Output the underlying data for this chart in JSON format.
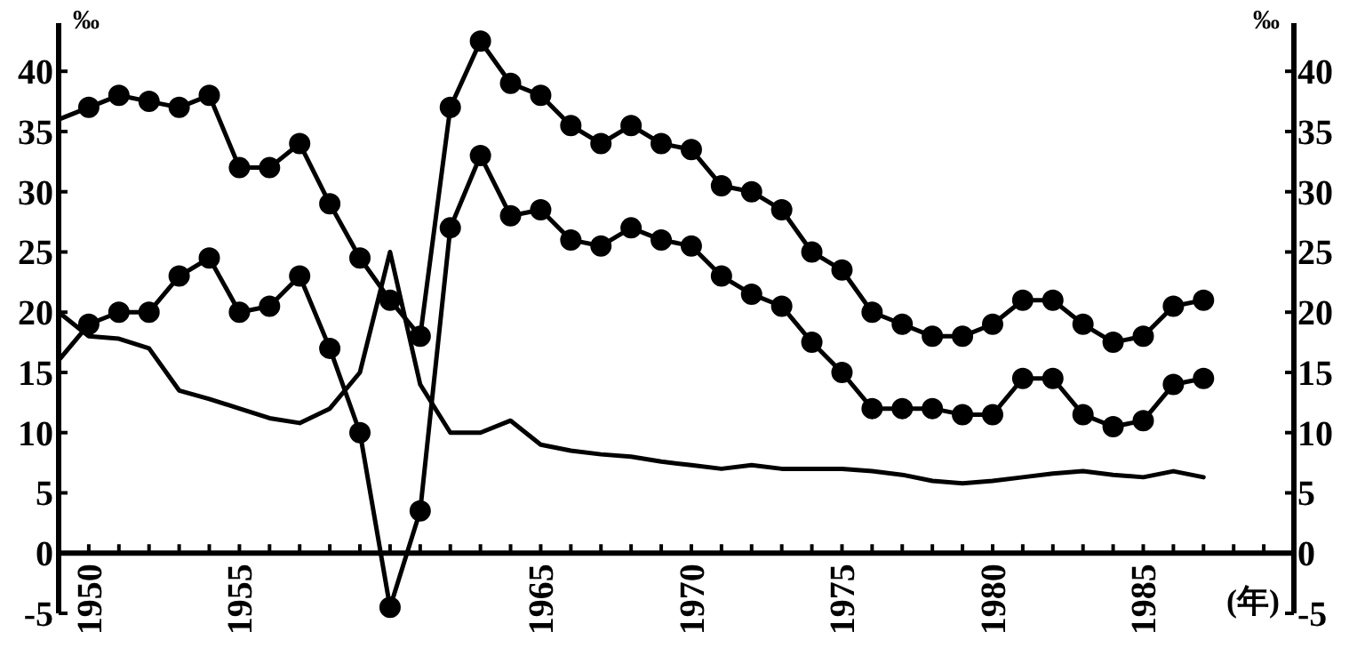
{
  "chart_data": {
    "type": "line",
    "xlabel": "(年)",
    "ylabel": "‰",
    "y2label": "‰",
    "x": [
      1949,
      1950,
      1951,
      1952,
      1953,
      1954,
      1955,
      1956,
      1957,
      1958,
      1959,
      1960,
      1961,
      1962,
      1963,
      1964,
      1965,
      1966,
      1967,
      1968,
      1969,
      1970,
      1971,
      1972,
      1973,
      1974,
      1975,
      1976,
      1977,
      1978,
      1979,
      1980,
      1981,
      1982,
      1983,
      1984,
      1985,
      1986,
      1987
    ],
    "xlim": [
      1949,
      1990
    ],
    "xticks": [
      {
        "value": 1949,
        "label": null
      },
      1950,
      {
        "value": 1951,
        "label": null
      },
      {
        "value": 1952,
        "label": null
      },
      {
        "value": 1953,
        "label": null
      },
      {
        "value": 1954,
        "label": null
      },
      1955,
      {
        "value": 1956,
        "label": null
      },
      {
        "value": 1957,
        "label": null
      },
      {
        "value": 1958,
        "label": null
      },
      {
        "value": 1959,
        "label": null
      },
      {
        "value": 1960,
        "label": null
      },
      {
        "value": 1961,
        "label": null
      },
      {
        "value": 1962,
        "label": null
      },
      {
        "value": 1963,
        "label": null
      },
      {
        "value": 1964,
        "label": null
      },
      1965,
      {
        "value": 1966,
        "label": null
      },
      {
        "value": 1967,
        "label": null
      },
      {
        "value": 1968,
        "label": null
      },
      {
        "value": 1969,
        "label": null
      },
      1970,
      {
        "value": 1971,
        "label": null
      },
      {
        "value": 1972,
        "label": null
      },
      {
        "value": 1973,
        "label": null
      },
      {
        "value": 1974,
        "label": null
      },
      1975,
      {
        "value": 1976,
        "label": null
      },
      {
        "value": 1977,
        "label": null
      },
      {
        "value": 1978,
        "label": null
      },
      {
        "value": 1979,
        "label": null
      },
      1980,
      {
        "value": 1981,
        "label": null
      },
      {
        "value": 1982,
        "label": null
      },
      {
        "value": 1983,
        "label": null
      },
      {
        "value": 1984,
        "label": null
      },
      1985,
      {
        "value": 1986,
        "label": null
      },
      {
        "value": 1987,
        "label": null
      },
      {
        "value": 1988,
        "label": null
      },
      {
        "value": 1989,
        "label": null
      }
    ],
    "ylim": [
      -5,
      44
    ],
    "yticks": [
      -5,
      0,
      5,
      10,
      15,
      20,
      25,
      30,
      35,
      40
    ],
    "y2lim": [
      -5,
      44
    ],
    "y2ticks": [
      -5,
      0,
      5,
      10,
      15,
      20,
      25,
      30,
      35,
      40
    ],
    "grid": false,
    "line_style": "solid",
    "series": [
      {
        "color": "#000000",
        "marker": "circle",
        "values": [
          36,
          37,
          38,
          37.5,
          37,
          38,
          32,
          32,
          34,
          29,
          24.5,
          21,
          18,
          37,
          42.5,
          39,
          38,
          35.5,
          34,
          35.5,
          34,
          33.5,
          30.5,
          30,
          28.5,
          25,
          23.5,
          20,
          19,
          18,
          18,
          19,
          21,
          21,
          19,
          17.5,
          18,
          20.5,
          21
        ]
      },
      {
        "color": "#000000",
        "marker": "circle",
        "values": [
          16,
          19,
          20,
          20,
          23,
          24.5,
          20,
          20.5,
          23,
          17,
          10,
          -4.5,
          3.5,
          27,
          33,
          28,
          28.5,
          26,
          25.5,
          27,
          26,
          25.5,
          23,
          21.5,
          20.5,
          17.5,
          15,
          12,
          12,
          12,
          11.5,
          11.5,
          14.5,
          14.5,
          11.5,
          10.5,
          11,
          14,
          14.5
        ]
      },
      {
        "color": "#000000",
        "marker": "none",
        "values": [
          20,
          18,
          17.8,
          17,
          13.5,
          12.8,
          12,
          11.2,
          10.8,
          12,
          15,
          25,
          14,
          10,
          10,
          11,
          9,
          8.5,
          8.2,
          8,
          7.6,
          7.3,
          7,
          7.3,
          7,
          7,
          7,
          6.8,
          6.5,
          6,
          5.8,
          6,
          6.3,
          6.6,
          6.8,
          6.5,
          6.3,
          6.8,
          6.3
        ]
      }
    ]
  }
}
